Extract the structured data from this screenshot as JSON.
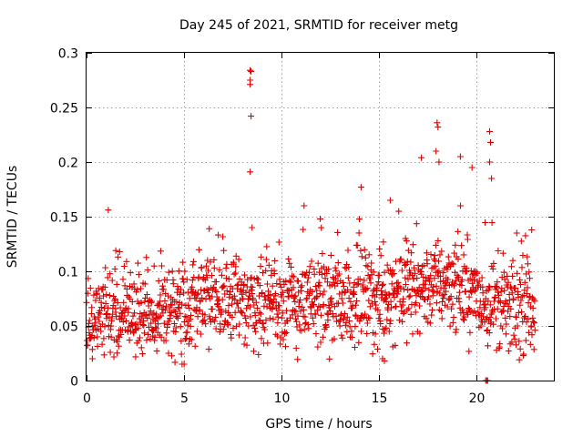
{
  "chart_data": {
    "type": "scatter",
    "title": "Day 245 of 2021, SRMTID for receiver metg",
    "xlabel": "GPS time / hours",
    "ylabel": "SRMTID / TECUs",
    "xlim": [
      0,
      24
    ],
    "ylim": [
      0,
      0.3
    ],
    "xticks": [
      "0",
      "5",
      "10",
      "15",
      "20"
    ],
    "xtick_values": [
      0,
      5,
      10,
      15,
      20
    ],
    "yticks": [
      "0",
      "0.05",
      "0.1",
      "0.15",
      "0.2",
      "0.25",
      "0.3"
    ],
    "ytick_values": [
      0,
      0.05,
      0.1,
      0.15,
      0.2,
      0.25,
      0.3
    ],
    "grid": true,
    "marker": "+",
    "color": "#e00000",
    "series": [
      {
        "name": "SRMTID",
        "x_start": 0.0,
        "x_step": 0.0167,
        "count": 1380,
        "baseline": [
          [
            0,
            0.055
          ],
          [
            1,
            0.06
          ],
          [
            2,
            0.055
          ],
          [
            3,
            0.06
          ],
          [
            4,
            0.06
          ],
          [
            5,
            0.06
          ],
          [
            6,
            0.08
          ],
          [
            7,
            0.075
          ],
          [
            8,
            0.07
          ],
          [
            9,
            0.075
          ],
          [
            10,
            0.07
          ],
          [
            11,
            0.07
          ],
          [
            12,
            0.072
          ],
          [
            13,
            0.075
          ],
          [
            14,
            0.075
          ],
          [
            15,
            0.07
          ],
          [
            16,
            0.085
          ],
          [
            17,
            0.085
          ],
          [
            18,
            0.09
          ],
          [
            19,
            0.09
          ],
          [
            20,
            0.075
          ],
          [
            21,
            0.07
          ],
          [
            22,
            0.065
          ],
          [
            23,
            0.07
          ]
        ],
        "highlights": [
          {
            "x": 8.4,
            "y": 0.284
          },
          {
            "x": 8.45,
            "y": 0.283
          },
          {
            "x": 8.4,
            "y": 0.275
          },
          {
            "x": 8.4,
            "y": 0.271
          },
          {
            "x": 8.45,
            "y": 0.242
          },
          {
            "x": 8.4,
            "y": 0.191
          },
          {
            "x": 8.5,
            "y": 0.14
          },
          {
            "x": 18.0,
            "y": 0.236
          },
          {
            "x": 18.05,
            "y": 0.232
          },
          {
            "x": 17.95,
            "y": 0.21
          },
          {
            "x": 18.1,
            "y": 0.2
          },
          {
            "x": 20.7,
            "y": 0.228
          },
          {
            "x": 20.75,
            "y": 0.218
          },
          {
            "x": 20.7,
            "y": 0.2
          },
          {
            "x": 20.8,
            "y": 0.185
          },
          {
            "x": 14.1,
            "y": 0.177
          },
          {
            "x": 17.2,
            "y": 0.204
          },
          {
            "x": 19.2,
            "y": 0.205
          },
          {
            "x": 19.8,
            "y": 0.195
          },
          {
            "x": 15.6,
            "y": 0.165
          },
          {
            "x": 12.0,
            "y": 0.148
          },
          {
            "x": 20.5,
            "y": 0.0
          },
          {
            "x": 20.6,
            "y": 0.0
          },
          {
            "x": 20.55,
            "y": 0.0
          },
          {
            "x": 1.5,
            "y": 0.119
          },
          {
            "x": 1.7,
            "y": 0.118
          },
          {
            "x": 6.3,
            "y": 0.139
          },
          {
            "x": 15.2,
            "y": 0.02
          },
          {
            "x": 15.3,
            "y": 0.018
          },
          {
            "x": 0.3,
            "y": 0.02
          }
        ]
      }
    ]
  }
}
